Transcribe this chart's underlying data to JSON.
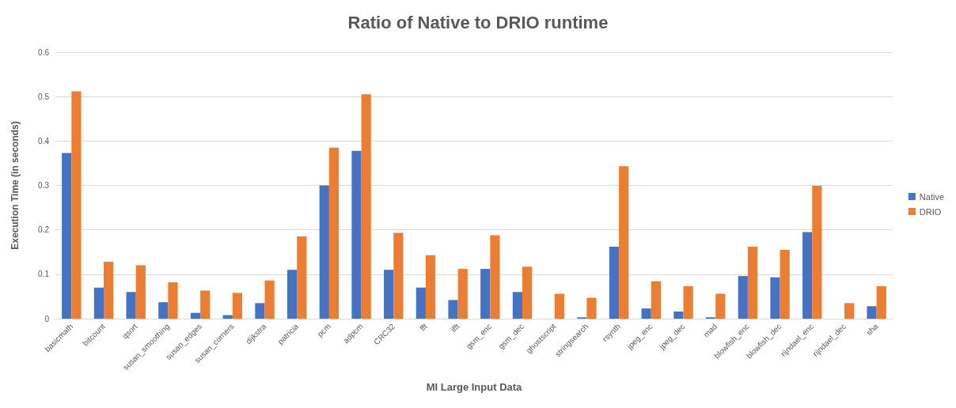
{
  "chart_data": {
    "type": "bar",
    "title": "Ratio of Native to DRIO runtime",
    "xlabel": "MI Large Input Data",
    "ylabel": "Execution Time (in seconds)",
    "categories": [
      "basicmath",
      "bitcount",
      "qsort",
      "susan_smoothing",
      "susan_edges",
      "susan_corners",
      "dijkstra",
      "patricia",
      "pcm",
      "adpcm",
      "CRC32",
      "fft",
      "ifft",
      "gsm_enc",
      "gsm_dec",
      "ghostscript",
      "stringsearch",
      "rsynth",
      "jpeg_enc",
      "jpeg_dec",
      "mad",
      "blowfish_enc",
      "blowfish_dec",
      "rijndael_enc",
      "rijndael_dec",
      "sha"
    ],
    "series": [
      {
        "name": "Native",
        "color": "#4472c4",
        "values": [
          0.373,
          0.07,
          0.06,
          0.037,
          0.013,
          0.008,
          0.035,
          0.11,
          0.3,
          0.378,
          0.11,
          0.07,
          0.042,
          0.112,
          0.06,
          0,
          0.003,
          0.162,
          0.023,
          0.016,
          0.003,
          0.096,
          0.093,
          0.195,
          0,
          0.028
        ]
      },
      {
        "name": "DRIO",
        "color": "#ed7d31",
        "values": [
          0.512,
          0.128,
          0.12,
          0.082,
          0.063,
          0.058,
          0.086,
          0.185,
          0.385,
          0.505,
          0.193,
          0.143,
          0.112,
          0.188,
          0.117,
          0.056,
          0.047,
          0.343,
          0.084,
          0.073,
          0.056,
          0.162,
          0.155,
          0.299,
          0.035,
          0.073
        ]
      }
    ],
    "ylim": [
      0,
      0.6
    ],
    "yticks": [
      0,
      0.1,
      0.2,
      0.3,
      0.4,
      0.5,
      0.6
    ],
    "grid": "y",
    "legend": "right"
  }
}
